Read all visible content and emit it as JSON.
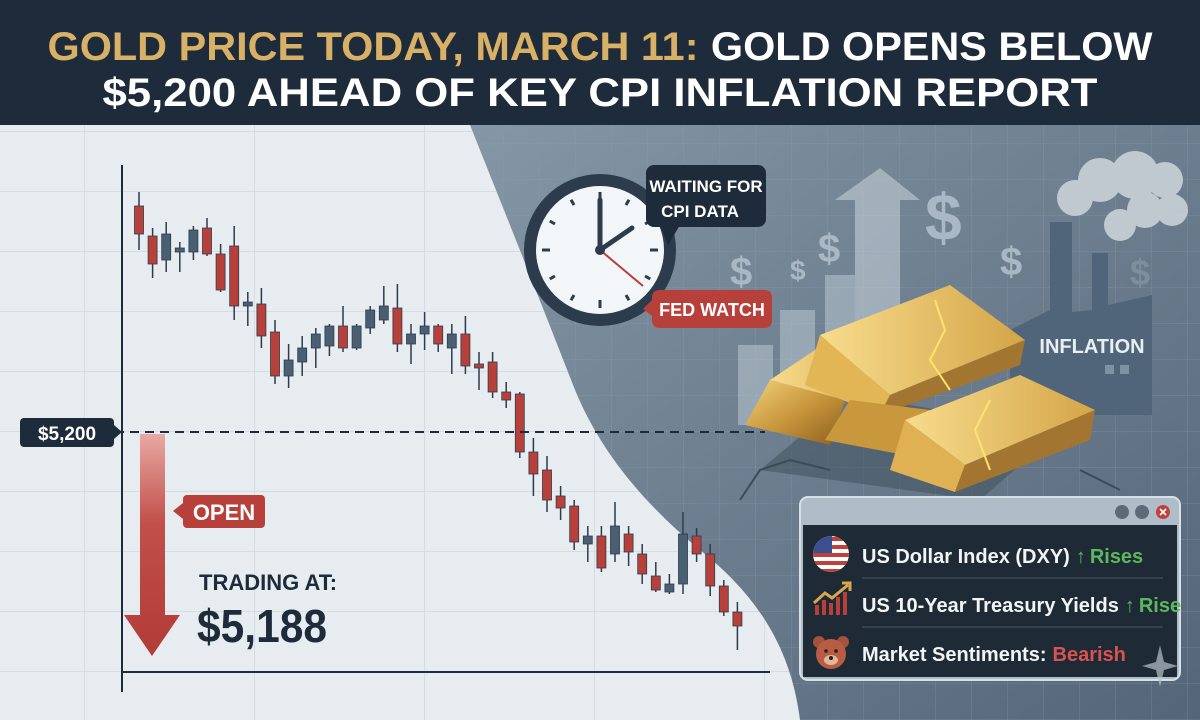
{
  "header": {
    "title_line1_gold": "GOLD PRICE TODAY, MARCH 11:",
    "title_line1_white": "GOLD OPENS BELOW",
    "title_line2": "$5,200 AHEAD OF KEY CPI INFLATION REPORT"
  },
  "chart": {
    "level_label": "$5,200",
    "level_price": 5200,
    "open_label": "OPEN",
    "trading_label": "TRADING AT:",
    "trading_price": "$5,188",
    "colors": {
      "down": "#b8403b",
      "up": "#4a5f72"
    },
    "candles": [
      [
        5313,
        5320,
        5291,
        5299
      ],
      [
        5298,
        5302,
        5277,
        5284
      ],
      [
        5286,
        5305,
        5280,
        5299
      ],
      [
        5290,
        5295,
        5280,
        5292
      ],
      [
        5290,
        5303,
        5286,
        5301
      ],
      [
        5302,
        5307,
        5288,
        5289
      ],
      [
        5289,
        5294,
        5270,
        5271
      ],
      [
        5293,
        5303,
        5256,
        5263
      ],
      [
        5263,
        5270,
        5253,
        5265
      ],
      [
        5264,
        5272,
        5242,
        5248
      ],
      [
        5250,
        5256,
        5224,
        5228
      ],
      [
        5228,
        5244,
        5222,
        5236
      ],
      [
        5235,
        5248,
        5228,
        5242
      ],
      [
        5242,
        5252,
        5232,
        5249
      ],
      [
        5243,
        5254,
        5238,
        5253
      ],
      [
        5253,
        5263,
        5240,
        5242
      ],
      [
        5242,
        5254,
        5241,
        5253
      ],
      [
        5252,
        5263,
        5249,
        5261
      ],
      [
        5256,
        5273,
        5254,
        5263
      ],
      [
        5262,
        5274,
        5240,
        5244
      ],
      [
        5244,
        5254,
        5234,
        5249
      ],
      [
        5249,
        5260,
        5241,
        5253
      ],
      [
        5253,
        5254,
        5240,
        5244
      ],
      [
        5242,
        5254,
        5229,
        5249
      ],
      [
        5249,
        5258,
        5229,
        5233
      ],
      [
        5234,
        5240,
        5221,
        5232
      ],
      [
        5235,
        5240,
        5217,
        5220
      ],
      [
        5220,
        5225,
        5212,
        5216
      ],
      [
        5219,
        5220,
        5187,
        5190
      ],
      [
        5190,
        5197,
        5168,
        5179
      ],
      [
        5181,
        5188,
        5160,
        5166
      ],
      [
        5168,
        5173,
        5156,
        5162
      ],
      [
        5163,
        5166,
        5141,
        5145
      ],
      [
        5144,
        5153,
        5135,
        5148
      ],
      [
        5148,
        5153,
        5130,
        5132
      ],
      [
        5139,
        5165,
        5135,
        5153
      ],
      [
        5149,
        5153,
        5133,
        5140
      ],
      [
        5139,
        5144,
        5124,
        5129
      ],
      [
        5128,
        5135,
        5120,
        5121
      ],
      [
        5120,
        5129,
        5119,
        5124
      ],
      [
        5124,
        5160,
        5119,
        5149
      ],
      [
        5148,
        5152,
        5135,
        5139
      ],
      [
        5139,
        5144,
        5118,
        5123
      ],
      [
        5123,
        5126,
        5108,
        5110
      ],
      [
        5110,
        5115,
        5091,
        5103
      ]
    ]
  },
  "callouts": {
    "waiting": [
      "WAITING FOR",
      "CPI DATA"
    ],
    "fed_watch": "FED WATCH",
    "inflation": "INFLATION"
  },
  "panel": {
    "rows": [
      {
        "icon": "us-flag-icon",
        "label": "US Dollar Index (DXY)",
        "arrow": "↑",
        "status": "Rises",
        "color": "#5cb85c"
      },
      {
        "icon": "rising-chart-icon",
        "label": "US 10-Year Treasury Yields",
        "arrow": "↑",
        "status": "Rise",
        "color": "#5cb85c"
      },
      {
        "icon": "bear-icon",
        "label": "Market Sentiments:",
        "arrow": "",
        "status": "Bearish",
        "color": "#d9534f"
      }
    ]
  }
}
